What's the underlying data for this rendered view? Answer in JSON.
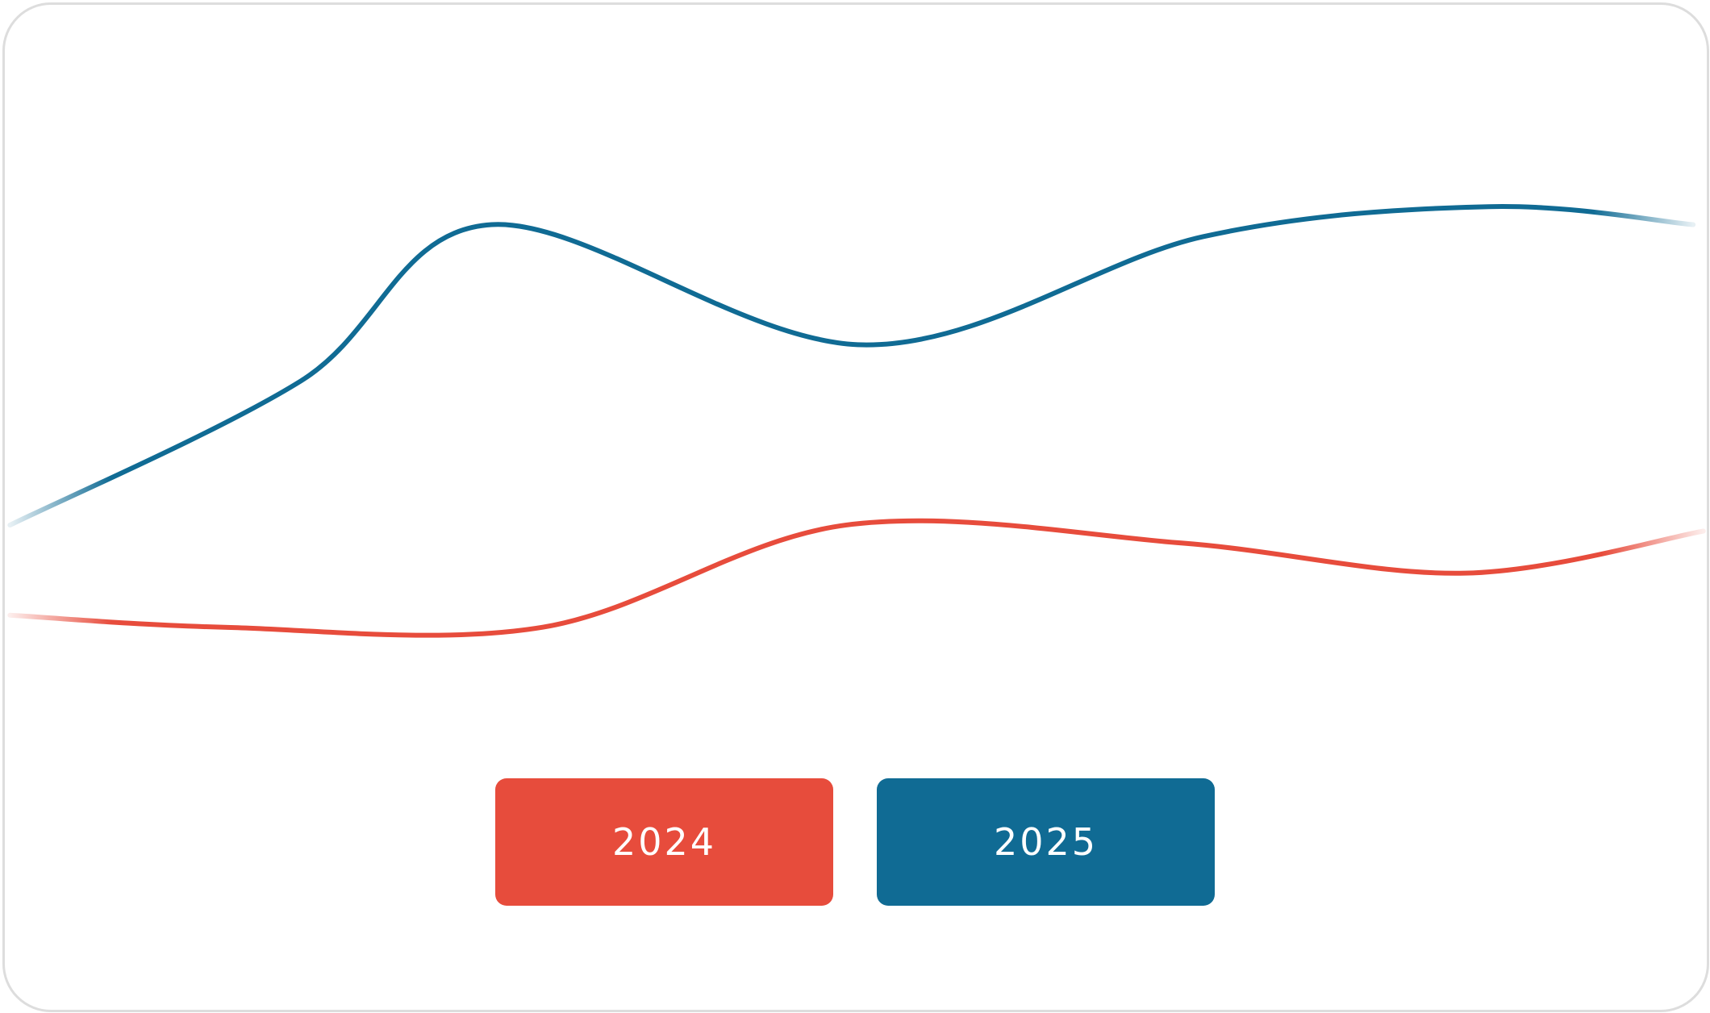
{
  "chart_data": {
    "type": "line",
    "xlim": [
      0,
      100
    ],
    "ylim": [
      0,
      100
    ],
    "series": [
      {
        "name": "2024",
        "color": "#e74c3c",
        "x": [
          0.3,
          12.9,
          31.6,
          49.4,
          69.2,
          85.8,
          99.8
        ],
        "values": [
          16,
          14,
          14,
          31,
          28,
          23,
          30
        ]
      },
      {
        "name": "2025",
        "color": "#106b94",
        "x": [
          0.3,
          17.4,
          28.6,
          50.4,
          70.4,
          87.2,
          99.2
        ],
        "values": [
          31,
          55,
          81,
          61,
          79,
          84,
          81
        ]
      }
    ]
  }
}
